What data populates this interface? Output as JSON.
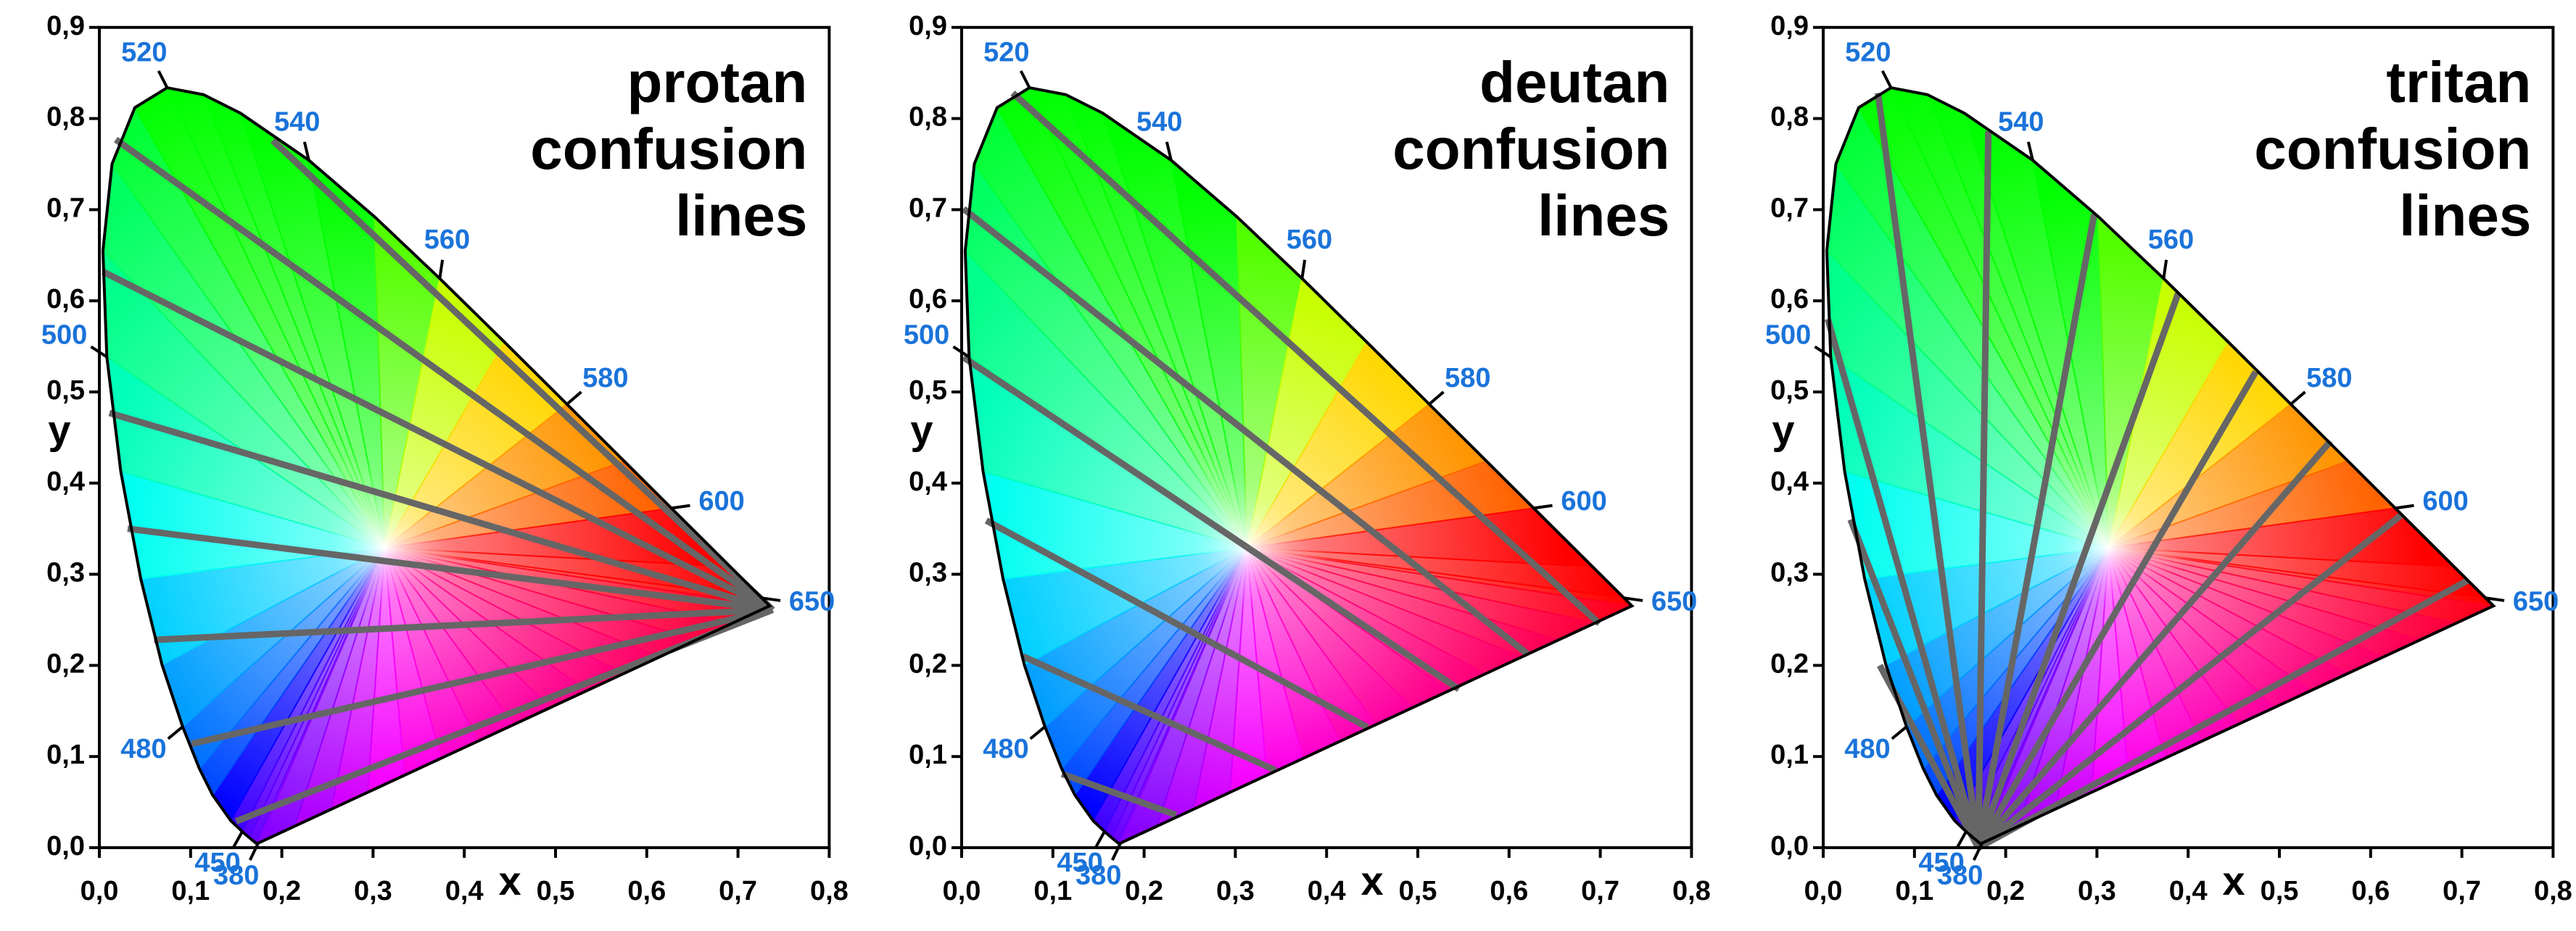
{
  "chart_data": [
    {
      "type": "line",
      "title": "protan confusion lines",
      "x_label": "x",
      "y_label": "y",
      "xlim": [
        0,
        0.8
      ],
      "ylim": [
        0,
        0.9
      ],
      "xticks": [
        {
          "value": 0,
          "label": "0,0"
        },
        {
          "value": 0.1,
          "label": "0,1"
        },
        {
          "value": 0.2,
          "label": "0,2"
        },
        {
          "value": 0.3,
          "label": "0,3"
        },
        {
          "value": 0.4,
          "label": "0,4"
        },
        {
          "value": 0.5,
          "label": "0,5"
        },
        {
          "value": 0.6,
          "label": "0,6"
        },
        {
          "value": 0.7,
          "label": "0,7"
        },
        {
          "value": 0.8,
          "label": "0,8"
        }
      ],
      "yticks": [
        {
          "value": 0,
          "label": "0,0"
        },
        {
          "value": 0.1,
          "label": "0,1"
        },
        {
          "value": 0.2,
          "label": "0,2"
        },
        {
          "value": 0.3,
          "label": "0,3"
        },
        {
          "value": 0.4,
          "label": "0,4"
        },
        {
          "value": 0.5,
          "label": "0,5"
        },
        {
          "value": 0.6,
          "label": "0,6"
        },
        {
          "value": 0.7,
          "label": "0,7"
        },
        {
          "value": 0.8,
          "label": "0,8"
        },
        {
          "value": 0.9,
          "label": "0,9"
        }
      ],
      "locus": {
        "color": "#000000",
        "x": [
          0.1741,
          0.1714,
          0.1644,
          0.1566,
          0.144,
          0.1241,
          0.1096,
          0.0913,
          0.0687,
          0.0454,
          0.0235,
          0.0082,
          0.0039,
          0.0139,
          0.0389,
          0.0743,
          0.1142,
          0.1547,
          0.2296,
          0.3016,
          0.3731,
          0.4441,
          0.5125,
          0.5752,
          0.627,
          0.6915,
          0.726,
          0.7347
        ],
        "y": [
          0.005,
          0.0051,
          0.0109,
          0.0177,
          0.0297,
          0.0578,
          0.0868,
          0.1327,
          0.2007,
          0.295,
          0.4127,
          0.5384,
          0.6548,
          0.7502,
          0.812,
          0.8338,
          0.8262,
          0.8059,
          0.7543,
          0.6923,
          0.6245,
          0.5547,
          0.4866,
          0.4242,
          0.3725,
          0.3083,
          0.274,
          0.2653
        ]
      },
      "annotation_color": "#1a73d9",
      "annotations": [
        {
          "label": "520",
          "x": 0.0743,
          "y": 0.8338
        },
        {
          "label": "540",
          "x": 0.2296,
          "y": 0.7543
        },
        {
          "label": "560",
          "x": 0.3731,
          "y": 0.6245
        },
        {
          "label": "580",
          "x": 0.5125,
          "y": 0.4866
        },
        {
          "label": "600",
          "x": 0.627,
          "y": 0.3725
        },
        {
          "label": "650",
          "x": 0.726,
          "y": 0.274
        },
        {
          "label": "500",
          "x": 0.0082,
          "y": 0.5384
        },
        {
          "label": "480",
          "x": 0.0913,
          "y": 0.1327
        },
        {
          "label": "450",
          "x": 0.1566,
          "y": 0.0177
        },
        {
          "label": "380",
          "x": 0.1741,
          "y": 0.005
        }
      ],
      "line_color": "#666666",
      "series": [
        {
          "x": [
            0.15,
            0.738
          ],
          "y": [
            0.029,
            0.261
          ]
        },
        {
          "x": [
            0.101,
            0.738
          ],
          "y": [
            0.114,
            0.261
          ]
        },
        {
          "x": [
            0.06,
            0.738
          ],
          "y": [
            0.228,
            0.261
          ]
        },
        {
          "x": [
            0.031,
            0.738
          ],
          "y": [
            0.35,
            0.261
          ]
        },
        {
          "x": [
            0.011,
            0.738
          ],
          "y": [
            0.477,
            0.261
          ]
        },
        {
          "x": [
            0.004,
            0.738
          ],
          "y": [
            0.632,
            0.261
          ]
        },
        {
          "x": [
            0.018,
            0.738
          ],
          "y": [
            0.777,
            0.261
          ]
        },
        {
          "x": [
            0.19,
            0.738
          ],
          "y": [
            0.776,
            0.261
          ]
        }
      ]
    },
    {
      "type": "line",
      "title": "deutan confusion lines",
      "x_label": "x",
      "y_label": "y",
      "xlim": [
        0,
        0.8
      ],
      "ylim": [
        0,
        0.9
      ],
      "xticks": [
        {
          "value": 0,
          "label": "0,0"
        },
        {
          "value": 0.1,
          "label": "0,1"
        },
        {
          "value": 0.2,
          "label": "0,2"
        },
        {
          "value": 0.3,
          "label": "0,3"
        },
        {
          "value": 0.4,
          "label": "0,4"
        },
        {
          "value": 0.5,
          "label": "0,5"
        },
        {
          "value": 0.6,
          "label": "0,6"
        },
        {
          "value": 0.7,
          "label": "0,7"
        },
        {
          "value": 0.8,
          "label": "0,8"
        }
      ],
      "yticks": [
        {
          "value": 0,
          "label": "0,0"
        },
        {
          "value": 0.1,
          "label": "0,1"
        },
        {
          "value": 0.2,
          "label": "0,2"
        },
        {
          "value": 0.3,
          "label": "0,3"
        },
        {
          "value": 0.4,
          "label": "0,4"
        },
        {
          "value": 0.5,
          "label": "0,5"
        },
        {
          "value": 0.6,
          "label": "0,6"
        },
        {
          "value": 0.7,
          "label": "0,7"
        },
        {
          "value": 0.8,
          "label": "0,8"
        },
        {
          "value": 0.9,
          "label": "0,9"
        }
      ],
      "locus": {
        "color": "#000000",
        "x": [
          0.1741,
          0.1714,
          0.1644,
          0.1566,
          0.144,
          0.1241,
          0.1096,
          0.0913,
          0.0687,
          0.0454,
          0.0235,
          0.0082,
          0.0039,
          0.0139,
          0.0389,
          0.0743,
          0.1142,
          0.1547,
          0.2296,
          0.3016,
          0.3731,
          0.4441,
          0.5125,
          0.5752,
          0.627,
          0.6915,
          0.726,
          0.7347
        ],
        "y": [
          0.005,
          0.0051,
          0.0109,
          0.0177,
          0.0297,
          0.0578,
          0.0868,
          0.1327,
          0.2007,
          0.295,
          0.4127,
          0.5384,
          0.6548,
          0.7502,
          0.812,
          0.8338,
          0.8262,
          0.8059,
          0.7543,
          0.6923,
          0.6245,
          0.5547,
          0.4866,
          0.4242,
          0.3725,
          0.3083,
          0.274,
          0.2653
        ]
      },
      "annotation_color": "#1a73d9",
      "annotations": [
        {
          "label": "520",
          "x": 0.0743,
          "y": 0.8338
        },
        {
          "label": "540",
          "x": 0.2296,
          "y": 0.7543
        },
        {
          "label": "560",
          "x": 0.3731,
          "y": 0.6245
        },
        {
          "label": "580",
          "x": 0.5125,
          "y": 0.4866
        },
        {
          "label": "600",
          "x": 0.627,
          "y": 0.3725
        },
        {
          "label": "650",
          "x": 0.726,
          "y": 0.274
        },
        {
          "label": "500",
          "x": 0.0082,
          "y": 0.5384
        },
        {
          "label": "480",
          "x": 0.0913,
          "y": 0.1327
        },
        {
          "label": "450",
          "x": 0.1566,
          "y": 0.0177
        },
        {
          "label": "380",
          "x": 0.1741,
          "y": 0.005
        }
      ],
      "line_color": "#666666",
      "series": [
        {
          "x": [
            0.056,
            0.699
          ],
          "y": [
            0.828,
            0.246
          ]
        },
        {
          "x": [
            0.002,
            0.621
          ],
          "y": [
            0.701,
            0.212
          ]
        },
        {
          "x": [
            0.002,
            0.545
          ],
          "y": [
            0.538,
            0.174
          ]
        },
        {
          "x": [
            0.027,
            0.445
          ],
          "y": [
            0.359,
            0.132
          ]
        },
        {
          "x": [
            0.067,
            0.344
          ],
          "y": [
            0.21,
            0.085
          ]
        },
        {
          "x": [
            0.11,
            0.235
          ],
          "y": [
            0.081,
            0.036
          ]
        }
      ]
    },
    {
      "type": "line",
      "title": "tritan confusion lines",
      "x_label": "x",
      "y_label": "y",
      "xlim": [
        0,
        0.8
      ],
      "ylim": [
        0,
        0.9
      ],
      "xticks": [
        {
          "value": 0,
          "label": "0,0"
        },
        {
          "value": 0.1,
          "label": "0,1"
        },
        {
          "value": 0.2,
          "label": "0,2"
        },
        {
          "value": 0.3,
          "label": "0,3"
        },
        {
          "value": 0.4,
          "label": "0,4"
        },
        {
          "value": 0.5,
          "label": "0,5"
        },
        {
          "value": 0.6,
          "label": "0,6"
        },
        {
          "value": 0.7,
          "label": "0,7"
        },
        {
          "value": 0.8,
          "label": "0,8"
        }
      ],
      "yticks": [
        {
          "value": 0,
          "label": "0,0"
        },
        {
          "value": 0.1,
          "label": "0,1"
        },
        {
          "value": 0.2,
          "label": "0,2"
        },
        {
          "value": 0.3,
          "label": "0,3"
        },
        {
          "value": 0.4,
          "label": "0,4"
        },
        {
          "value": 0.5,
          "label": "0,5"
        },
        {
          "value": 0.6,
          "label": "0,6"
        },
        {
          "value": 0.7,
          "label": "0,7"
        },
        {
          "value": 0.8,
          "label": "0,8"
        },
        {
          "value": 0.9,
          "label": "0,9"
        }
      ],
      "locus": {
        "color": "#000000",
        "x": [
          0.1741,
          0.1714,
          0.1644,
          0.1566,
          0.144,
          0.1241,
          0.1096,
          0.0913,
          0.0687,
          0.0454,
          0.0235,
          0.0082,
          0.0039,
          0.0139,
          0.0389,
          0.0743,
          0.1142,
          0.1547,
          0.2296,
          0.3016,
          0.3731,
          0.4441,
          0.5125,
          0.5752,
          0.627,
          0.6915,
          0.726,
          0.7347
        ],
        "y": [
          0.005,
          0.0051,
          0.0109,
          0.0177,
          0.0297,
          0.0578,
          0.0868,
          0.1327,
          0.2007,
          0.295,
          0.4127,
          0.5384,
          0.6548,
          0.7502,
          0.812,
          0.8338,
          0.8262,
          0.8059,
          0.7543,
          0.6923,
          0.6245,
          0.5547,
          0.4866,
          0.4242,
          0.3725,
          0.3083,
          0.274,
          0.2653
        ]
      },
      "annotation_color": "#1a73d9",
      "annotations": [
        {
          "label": "520",
          "x": 0.0743,
          "y": 0.8338
        },
        {
          "label": "540",
          "x": 0.2296,
          "y": 0.7543
        },
        {
          "label": "560",
          "x": 0.3731,
          "y": 0.6245
        },
        {
          "label": "580",
          "x": 0.5125,
          "y": 0.4866
        },
        {
          "label": "600",
          "x": 0.627,
          "y": 0.3725
        },
        {
          "label": "650",
          "x": 0.726,
          "y": 0.274
        },
        {
          "label": "500",
          "x": 0.0082,
          "y": 0.5384
        },
        {
          "label": "480",
          "x": 0.0913,
          "y": 0.1327
        },
        {
          "label": "450",
          "x": 0.1566,
          "y": 0.0177
        },
        {
          "label": "380",
          "x": 0.1741,
          "y": 0.005
        }
      ],
      "line_color": "#666666",
      "series": [
        {
          "x": [
            0.06,
            0.17
          ],
          "y": [
            0.828,
            0
          ]
        },
        {
          "x": [
            0.181,
            0.17
          ],
          "y": [
            0.786,
            0
          ]
        },
        {
          "x": [
            0.297,
            0.17
          ],
          "y": [
            0.695,
            0
          ]
        },
        {
          "x": [
            0.389,
            0.17
          ],
          "y": [
            0.608,
            0
          ]
        },
        {
          "x": [
            0.474,
            0.17
          ],
          "y": [
            0.522,
            0
          ]
        },
        {
          "x": [
            0.556,
            0.17
          ],
          "y": [
            0.446,
            0
          ]
        },
        {
          "x": [
            0.635,
            0.17
          ],
          "y": [
            0.366,
            0
          ]
        },
        {
          "x": [
            0.706,
            0.17
          ],
          "y": [
            0.293,
            0
          ]
        },
        {
          "x": [
            0.005,
            0.17
          ],
          "y": [
            0.58,
            0
          ]
        },
        {
          "x": [
            0.03,
            0.17
          ],
          "y": [
            0.36,
            0
          ]
        },
        {
          "x": [
            0.062,
            0.17
          ],
          "y": [
            0.2,
            0
          ]
        }
      ]
    }
  ]
}
